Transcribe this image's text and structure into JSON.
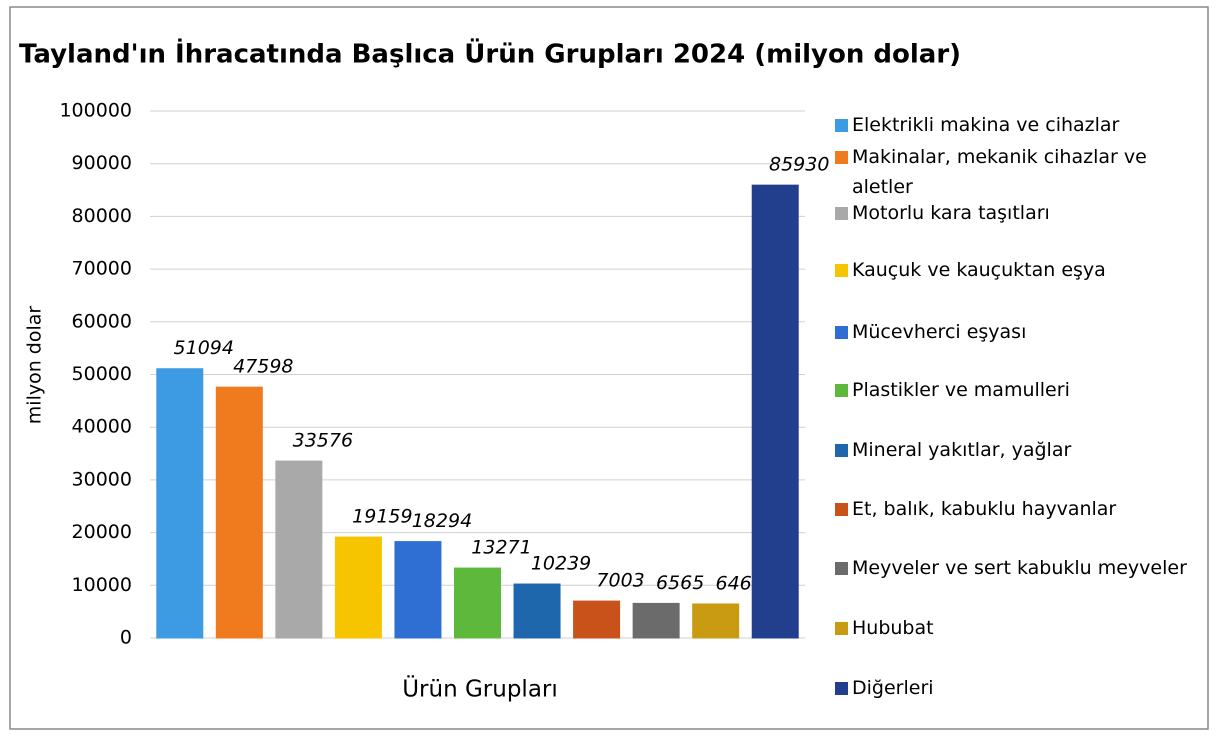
{
  "chart_data": {
    "type": "bar",
    "title": "Tayland'ın İhracatında Başlıca Ürün Grupları 2024 (milyon dolar)",
    "x_label": "Ürün Grupları",
    "y_label": "milyon dolar",
    "ylim": [
      0,
      100000
    ],
    "yticks": [
      0,
      10000,
      20000,
      30000,
      40000,
      50000,
      60000,
      70000,
      80000,
      90000,
      100000
    ],
    "grid": true,
    "legend": "right",
    "series": [
      {
        "name": "Elektrikli makina ve cihazlar",
        "color": "#3d9be3",
        "values": [
          51094
        ]
      },
      {
        "name": "Makinalar, mekanik cihazlar ve aletler",
        "color": "#f07a1e",
        "values": [
          47598
        ]
      },
      {
        "name": "Motorlu kara taşıtları",
        "color": "#a9a9a9",
        "values": [
          33576
        ]
      },
      {
        "name": "Kauçuk ve kauçuktan eşya",
        "color": "#f7c500",
        "values": [
          19159
        ]
      },
      {
        "name": "Mücevherci eşyası",
        "color": "#2f6fd3",
        "values": [
          18294
        ]
      },
      {
        "name": "Plastikler ve mamulleri",
        "color": "#5db83b",
        "values": [
          13271
        ]
      },
      {
        "name": "Mineral yakıtlar, yağlar",
        "color": "#1f67ad",
        "values": [
          10239
        ]
      },
      {
        "name": "Et, balık, kabuklu hayvanlar",
        "color": "#c9521b",
        "values": [
          7003
        ]
      },
      {
        "name": "Meyveler ve sert kabuklu meyveler",
        "color": "#6b6b6b",
        "values": [
          6565
        ]
      },
      {
        "name": "Hububat",
        "color": "#c99b12",
        "values": [
          6462
        ]
      },
      {
        "name": "Diğerleri",
        "color": "#213f8c",
        "values": [
          85930
        ]
      }
    ]
  }
}
